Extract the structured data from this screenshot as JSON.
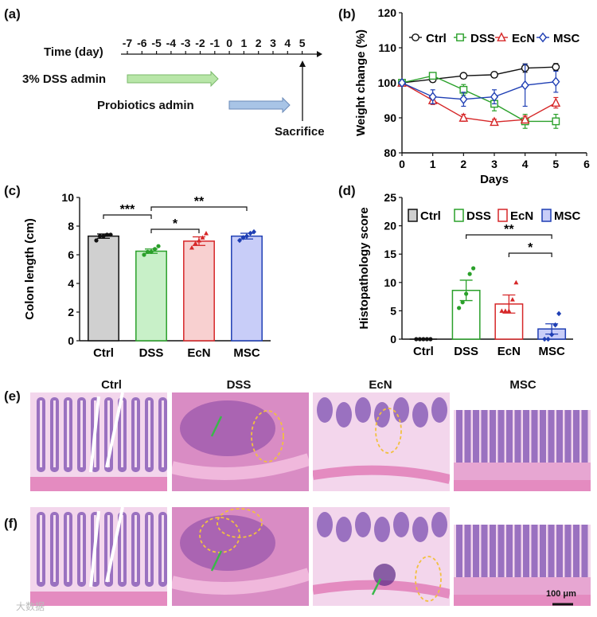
{
  "panel_labels": {
    "a": "(a)",
    "b": "(b)",
    "c": "(c)",
    "d": "(d)",
    "e": "(e)",
    "f": "(f)"
  },
  "timeline": {
    "time_label": "Time (day)",
    "ticks": [
      "-7",
      "-6",
      "-5",
      "-4",
      "-3",
      "-2",
      "-1",
      "0",
      "1",
      "2",
      "3",
      "4",
      "5"
    ],
    "dss_label": "3% DSS  admin",
    "probiotics_label": "Probiotics admin",
    "sacrifice_label": "Sacrifice",
    "colors": {
      "dss_arrow": "#b8e6a8",
      "probiotics_arrow": "#a8c4e6"
    }
  },
  "chart_data": [
    {
      "id": "b",
      "type": "line",
      "title": "",
      "xlabel": "Days",
      "ylabel": "Weight change (%)",
      "xlim": [
        0,
        6
      ],
      "ylim": [
        80,
        120
      ],
      "xticks": [
        0,
        1,
        2,
        3,
        4,
        5,
        6
      ],
      "yticks": [
        80,
        90,
        100,
        110,
        120
      ],
      "legend": "top",
      "x": [
        0,
        1,
        2,
        3,
        4,
        5
      ],
      "series": [
        {
          "name": "Ctrl",
          "color": "#111111",
          "marker": "circle",
          "values": [
            100,
            101,
            102,
            102.3,
            104.2,
            104.5
          ],
          "err": [
            0,
            0.8,
            0.8,
            0.8,
            1.2,
            1
          ]
        },
        {
          "name": "DSS",
          "color": "#2aa02a",
          "marker": "square",
          "values": [
            100,
            102,
            98,
            94,
            89,
            89
          ],
          "err": [
            0,
            0.8,
            1.5,
            2,
            2,
            2
          ]
        },
        {
          "name": "EcN",
          "color": "#d62728",
          "marker": "triangle",
          "values": [
            100,
            95,
            90,
            88.8,
            89.5,
            94.3
          ],
          "err": [
            0,
            1.2,
            1,
            0.8,
            1,
            1.5
          ]
        },
        {
          "name": "MSC",
          "color": "#1f3fb4",
          "marker": "diamond",
          "values": [
            100,
            96,
            95.3,
            96,
            99.3,
            100.3
          ],
          "err": [
            0,
            2,
            2,
            2,
            6,
            3
          ]
        }
      ]
    },
    {
      "id": "c",
      "type": "bar",
      "title": "",
      "xlabel": "",
      "ylabel": "Colon length (cm)",
      "ylim": [
        0,
        10
      ],
      "yticks": [
        0,
        2,
        4,
        6,
        8,
        10
      ],
      "categories": [
        "Ctrl",
        "DSS",
        "EcN",
        "MSC"
      ],
      "values": [
        7.3,
        6.25,
        6.95,
        7.3
      ],
      "err": [
        0.15,
        0.15,
        0.3,
        0.2
      ],
      "points": [
        [
          7.0,
          7.3,
          7.3,
          7.4,
          7.4
        ],
        [
          6.0,
          6.2,
          6.2,
          6.4,
          6.6
        ],
        [
          6.5,
          6.8,
          7.0,
          7.2,
          7.5
        ],
        [
          7.0,
          7.2,
          7.3,
          7.5,
          7.6
        ]
      ],
      "fills": [
        "#d0d0d0",
        "#c8f0c8",
        "#f8d0d0",
        "#c8cdf8"
      ],
      "edges": [
        "#111111",
        "#2aa02a",
        "#d62728",
        "#1f3fb4"
      ],
      "significance": [
        {
          "from": 0,
          "to": 1,
          "label": "***"
        },
        {
          "from": 1,
          "to": 2,
          "label": "*"
        },
        {
          "from": 1,
          "to": 3,
          "label": "**"
        }
      ]
    },
    {
      "id": "d",
      "type": "bar",
      "title": "",
      "xlabel": "",
      "ylabel": "Histopathology score",
      "ylim": [
        0,
        25
      ],
      "yticks": [
        0,
        5,
        10,
        15,
        20,
        25
      ],
      "legend": "top",
      "categories": [
        "Ctrl",
        "DSS",
        "EcN",
        "MSC"
      ],
      "values": [
        0,
        8.6,
        6.2,
        1.8
      ],
      "err": [
        0,
        1.8,
        1.6,
        0.9
      ],
      "points": [
        [
          0,
          0,
          0,
          0,
          0
        ],
        [
          5.5,
          6.5,
          8,
          11.5,
          12.5
        ],
        [
          5,
          5,
          5,
          7,
          10
        ],
        [
          0,
          0,
          0.8,
          2.5,
          4.5
        ]
      ],
      "fills": [
        "#d0d0d0",
        "#ffffff",
        "#ffffff",
        "#c8cdf8"
      ],
      "edges": [
        "#111111",
        "#2aa02a",
        "#d62728",
        "#1f3fb4"
      ],
      "significance": [
        {
          "from": 1,
          "to": 3,
          "label": "**"
        },
        {
          "from": 2,
          "to": 3,
          "label": "*"
        }
      ]
    }
  ],
  "histology": {
    "columns": [
      "Ctrl",
      "DSS",
      "EcN",
      "MSC"
    ],
    "rows": [
      "(e)",
      "(f)"
    ],
    "scale_bar": "100 μm",
    "colors": {
      "tissue_bg": "#f3d6ec",
      "crypt": "#8a5fb8",
      "lumen": "#ffffff",
      "stroma": "#e7a6d2",
      "muscle": "#e48bc0",
      "annotation_circle": "#f2c040",
      "annotation_arrow": "#3ab84a"
    }
  },
  "watermark": "大数据"
}
